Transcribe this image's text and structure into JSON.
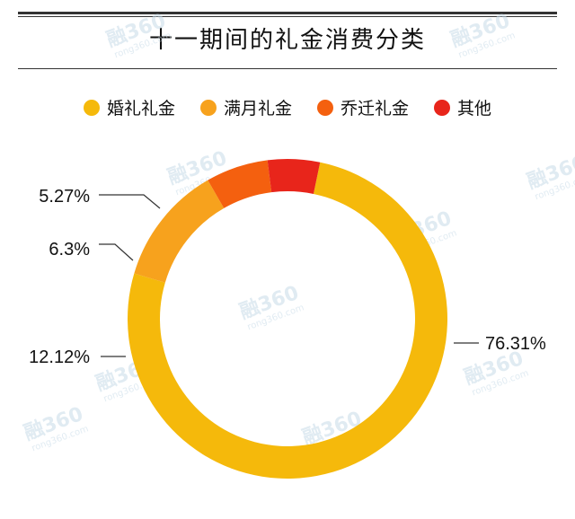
{
  "chart_data": {
    "type": "pie",
    "title": "十一期间的礼金消费分类",
    "categories": [
      "婚礼礼金",
      "满月礼金",
      "乔迁礼金",
      "其他"
    ],
    "values": [
      76.31,
      12.12,
      6.3,
      5.27
    ],
    "labels": [
      "76.31%",
      "12.12%",
      "6.3%",
      "5.27%"
    ],
    "colors": [
      "#f5b90b",
      "#f7a21d",
      "#f4600f",
      "#e8251b"
    ],
    "legend_position": "top",
    "donut": true
  },
  "watermark": {
    "text": "融360",
    "subtext": "rong360.com"
  }
}
